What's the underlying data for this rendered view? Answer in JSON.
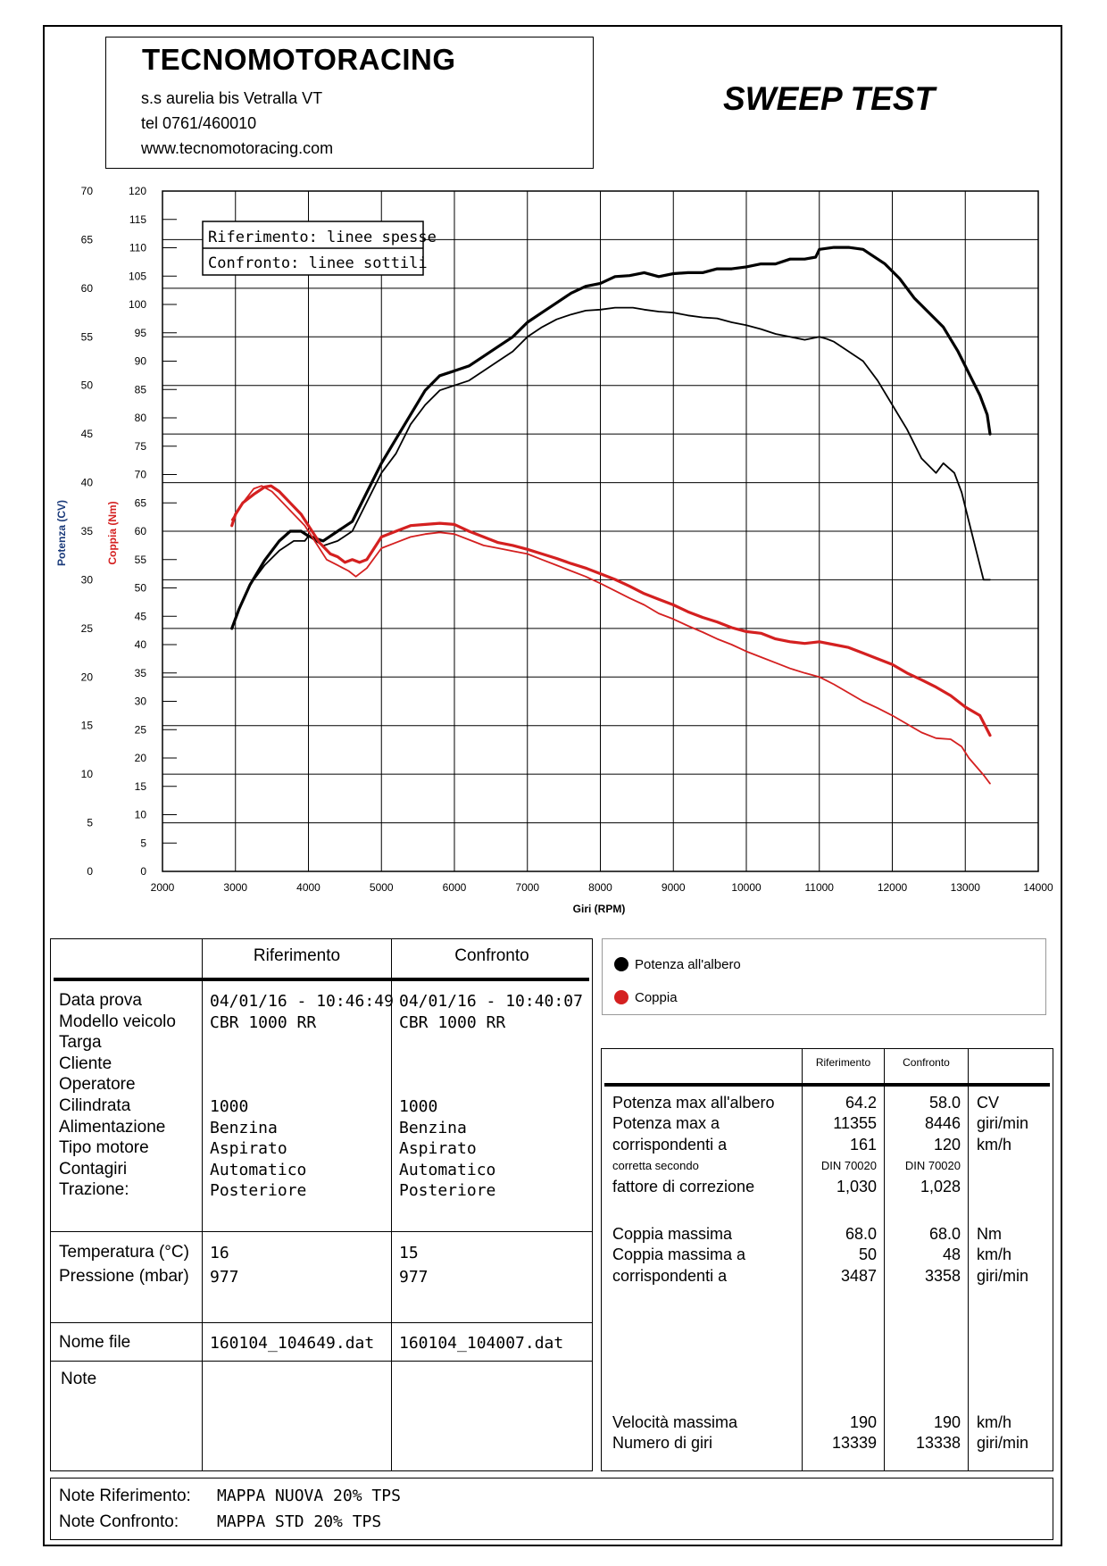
{
  "header": {
    "company": "TECNOMOTORACING",
    "address": "s.s aurelia bis  Vetralla  VT",
    "phone": "tel 0761/460010",
    "website": "www.tecnomotoracing.com",
    "test_type": "SWEEP TEST"
  },
  "colors": {
    "power": "#000000",
    "torque": "#d42020"
  },
  "chart_data": {
    "type": "line",
    "title": "",
    "xlabel": "Giri (RPM)",
    "ylabel_power": "Potenza (CV)",
    "ylabel_torque": "Coppia (Nm)",
    "xlim": [
      2000,
      14000
    ],
    "ylim_power": [
      0,
      70
    ],
    "ylim_torque": [
      0,
      120
    ],
    "x_ticks": [
      "2000",
      "3000",
      "4000",
      "5000",
      "6000",
      "7000",
      "8000",
      "9000",
      "10000",
      "11000",
      "12000",
      "13000",
      "14000"
    ],
    "power_ticks": [
      "0",
      "5",
      "10",
      "15",
      "20",
      "25",
      "30",
      "35",
      "40",
      "45",
      "50",
      "55",
      "60",
      "65",
      "70"
    ],
    "torque_ticks": [
      "0",
      "5",
      "10",
      "15",
      "20",
      "25",
      "30",
      "35",
      "40",
      "45",
      "50",
      "55",
      "60",
      "65",
      "70",
      "75",
      "80",
      "85",
      "90",
      "95",
      "100",
      "105",
      "110",
      "115",
      "120"
    ],
    "legend_lines": [
      "Riferimento: linee spesse",
      "Confronto: linee sottili"
    ],
    "series": [
      {
        "name": "Potenza Riferimento",
        "axis": "power",
        "style": "thick",
        "x": [
          2950,
          3050,
          3200,
          3400,
          3600,
          3750,
          3900,
          4000,
          4200,
          4400,
          4600,
          4800,
          5000,
          5200,
          5400,
          5600,
          5800,
          6000,
          6200,
          6400,
          6600,
          6800,
          7000,
          7200,
          7400,
          7600,
          7800,
          8000,
          8200,
          8400,
          8600,
          8800,
          9000,
          9200,
          9400,
          9600,
          9800,
          10000,
          10200,
          10400,
          10600,
          10800,
          10950,
          11000,
          11200,
          11400,
          11600,
          11700,
          11900,
          12100,
          12300,
          12500,
          12700,
          12900,
          13100,
          13200,
          13300,
          13339
        ],
        "y": [
          25,
          27,
          29.5,
          32,
          34,
          35,
          35,
          34.5,
          34,
          35,
          36,
          39,
          42,
          44.5,
          47,
          49.5,
          51,
          51.5,
          52,
          53,
          54,
          55,
          56.5,
          57.5,
          58.5,
          59.5,
          60.2,
          60.5,
          61.2,
          61.3,
          61.6,
          61.2,
          61.5,
          61.6,
          61.6,
          62,
          62,
          62.2,
          62.5,
          62.5,
          63,
          63,
          63.2,
          64,
          64.2,
          64.2,
          64,
          63.5,
          62.5,
          61,
          59,
          57.5,
          56,
          53.5,
          50.5,
          49,
          47,
          45
        ]
      },
      {
        "name": "Potenza Confronto",
        "axis": "power",
        "style": "thin",
        "x": [
          2950,
          3050,
          3200,
          3400,
          3600,
          3800,
          3950,
          4000,
          4200,
          4400,
          4600,
          4800,
          5000,
          5200,
          5400,
          5600,
          5800,
          6000,
          6200,
          6400,
          6600,
          6800,
          7000,
          7200,
          7400,
          7600,
          7800,
          8000,
          8200,
          8446,
          8600,
          8800,
          9000,
          9200,
          9400,
          9600,
          9800,
          10000,
          10200,
          10400,
          10600,
          10800,
          11000,
          11100,
          11200,
          11400,
          11600,
          11800,
          12000,
          12200,
          12400,
          12600,
          12700,
          12850,
          12950,
          13050,
          13150,
          13250,
          13338
        ],
        "y": [
          25,
          27,
          29.5,
          31.5,
          33,
          34,
          34,
          34.5,
          33.5,
          34,
          35,
          38,
          41,
          43,
          46,
          48,
          49.5,
          50,
          50.5,
          51.5,
          52.5,
          53.5,
          55,
          56,
          56.8,
          57.3,
          57.7,
          57.8,
          58,
          58,
          57.8,
          57.6,
          57.5,
          57.2,
          57,
          56.9,
          56.5,
          56.2,
          55.8,
          55.3,
          55,
          54.7,
          55,
          54.8,
          54.5,
          53.5,
          52.5,
          50.5,
          48,
          45.5,
          42.5,
          41,
          42,
          41,
          39,
          36,
          33,
          30,
          30
        ]
      },
      {
        "name": "Coppia Riferimento",
        "axis": "torque",
        "style": "thick",
        "x": [
          2950,
          3000,
          3100,
          3250,
          3400,
          3487,
          3600,
          3750,
          3900,
          4000,
          4150,
          4300,
          4400,
          4500,
          4600,
          4700,
          4800,
          5000,
          5200,
          5400,
          5600,
          5800,
          6000,
          6200,
          6400,
          6600,
          6800,
          7000,
          7200,
          7400,
          7600,
          7800,
          8000,
          8200,
          8400,
          8600,
          8800,
          9000,
          9200,
          9400,
          9600,
          9800,
          10000,
          10200,
          10400,
          10600,
          10800,
          11000,
          11200,
          11400,
          11600,
          11800,
          12000,
          12200,
          12400,
          12600,
          12800,
          13000,
          13200,
          13339
        ],
        "y": [
          61,
          63,
          65,
          66.5,
          67.8,
          68,
          67,
          65,
          63,
          61,
          58,
          56,
          55.5,
          54.5,
          55,
          54.5,
          55,
          59,
          60,
          61,
          61.2,
          61.4,
          61.2,
          60,
          59,
          58,
          57.5,
          56.8,
          56,
          55.2,
          54.3,
          53.5,
          52.5,
          51.5,
          50.3,
          49,
          48,
          47,
          45.8,
          44.8,
          44,
          43,
          42.3,
          42,
          41,
          40.5,
          40.2,
          40.5,
          40,
          39.5,
          38.5,
          37.5,
          36.5,
          35,
          33.8,
          32.5,
          31,
          29,
          27.5,
          24
        ]
      },
      {
        "name": "Coppia Confronto",
        "axis": "torque",
        "style": "thin",
        "x": [
          2950,
          3000,
          3100,
          3250,
          3358,
          3500,
          3650,
          3800,
          3950,
          4100,
          4250,
          4400,
          4550,
          4650,
          4800,
          5000,
          5200,
          5400,
          5600,
          5800,
          6000,
          6200,
          6400,
          6600,
          6800,
          7000,
          7200,
          7400,
          7600,
          7800,
          8000,
          8200,
          8400,
          8600,
          8800,
          9000,
          9200,
          9400,
          9600,
          9800,
          10000,
          10200,
          10400,
          10600,
          10800,
          11000,
          11200,
          11400,
          11600,
          11800,
          12000,
          12200,
          12400,
          12600,
          12800,
          12950,
          13050,
          13150,
          13250,
          13338
        ],
        "y": [
          62,
          63,
          65,
          67.5,
          68,
          67,
          65,
          63,
          61,
          58,
          55,
          54,
          53,
          52,
          53.5,
          57,
          58,
          59,
          59.5,
          59.8,
          59.5,
          58.5,
          57.5,
          57,
          56.5,
          56,
          55,
          54,
          53,
          52,
          50.8,
          49.5,
          48.2,
          47,
          45.5,
          44.5,
          43.3,
          42.2,
          41,
          40,
          38.8,
          37.8,
          36.8,
          35.8,
          35,
          34.3,
          33,
          31.5,
          30,
          28.8,
          27.5,
          26,
          24.5,
          23.5,
          23.3,
          22,
          20,
          18.5,
          17,
          15.5
        ]
      }
    ]
  },
  "test_table": {
    "col_ref": "Riferimento",
    "col_cmp": "Confronto",
    "rows": [
      {
        "label": "Data prova",
        "ref": "04/01/16 - 10:46:49",
        "cmp": "04/01/16 - 10:40:07"
      },
      {
        "label": "Modello veicolo",
        "ref": "CBR 1000 RR",
        "cmp": "CBR 1000 RR"
      },
      {
        "label": "Targa",
        "ref": "",
        "cmp": ""
      },
      {
        "label": "Cliente",
        "ref": "",
        "cmp": ""
      },
      {
        "label": "Operatore",
        "ref": "",
        "cmp": ""
      },
      {
        "label": "Cilindrata",
        "ref": "1000",
        "cmp": "1000"
      },
      {
        "label": "Alimentazione",
        "ref": "Benzina",
        "cmp": "Benzina"
      },
      {
        "label": "Tipo motore",
        "ref": "Aspirato",
        "cmp": "Aspirato"
      },
      {
        "label": "Contagiri",
        "ref": "Automatico",
        "cmp": "Automatico"
      },
      {
        "label": "Trazione:",
        "ref": "Posteriore",
        "cmp": "Posteriore"
      }
    ],
    "temperature": {
      "label": "Temperatura (°C)",
      "ref": "16",
      "cmp": "15"
    },
    "pressure": {
      "label": "Pressione (mbar)",
      "ref": "977",
      "cmp": "977"
    },
    "filename": {
      "label": "Nome file",
      "ref": "160104_104649.dat",
      "cmp": "160104_104007.dat"
    },
    "note_label": "Note"
  },
  "curve_legend": {
    "power": "Potenza all'albero",
    "torque": "Coppia"
  },
  "results": {
    "col_ref": "Riferimento",
    "col_cmp": "Confronto",
    "power_block": [
      {
        "label": "Potenza max all'albero",
        "ref": "64.2",
        "cmp": "58.0",
        "unit": "CV"
      },
      {
        "label": "Potenza max a",
        "ref": "11355",
        "cmp": "8446",
        "unit": "giri/min"
      },
      {
        "label": "corrispondenti a",
        "ref": "161",
        "cmp": "120",
        "unit": "km/h"
      },
      {
        "label": "corretta secondo",
        "ref": "DIN 70020",
        "cmp": "DIN 70020",
        "unit": ""
      },
      {
        "label": "fattore di correzione",
        "ref": "1,030",
        "cmp": "1,028",
        "unit": ""
      }
    ],
    "torque_block": [
      {
        "label": "Coppia massima",
        "ref": "68.0",
        "cmp": "68.0",
        "unit": "Nm"
      },
      {
        "label": "Coppia massima a",
        "ref": "50",
        "cmp": "48",
        "unit": "km/h"
      },
      {
        "label": "corrispondenti a",
        "ref": "3487",
        "cmp": "3358",
        "unit": "giri/min"
      }
    ],
    "speed_block": [
      {
        "label": "Velocità massima",
        "ref": "190",
        "cmp": "190",
        "unit": "km/h"
      },
      {
        "label": "Numero di giri",
        "ref": "13339",
        "cmp": "13338",
        "unit": "giri/min"
      }
    ]
  },
  "notes": {
    "ref_label": "Note Riferimento:",
    "ref_value": "MAPPA NUOVA 20% TPS",
    "cmp_label": "Note Confronto:",
    "cmp_value": "MAPPA STD 20% TPS"
  }
}
